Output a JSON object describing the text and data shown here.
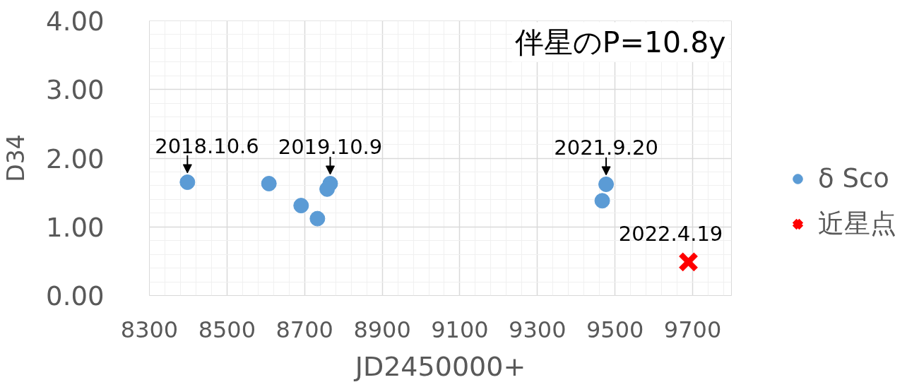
{
  "chart_data": {
    "type": "scatter",
    "title": "伴星のP=10.8y",
    "xlabel": "JD2450000+",
    "ylabel": "D34",
    "xlim": [
      8300,
      9800
    ],
    "xticks": [
      8300,
      8500,
      8700,
      8900,
      9100,
      9300,
      9500,
      9700
    ],
    "ylim": [
      0,
      4
    ],
    "yticks": [
      {
        "value": 0,
        "label": "0.00"
      },
      {
        "value": 1,
        "label": "1.00"
      },
      {
        "value": 2,
        "label": "2.00"
      },
      {
        "value": 3,
        "label": "3.00"
      },
      {
        "value": 4,
        "label": "4.00"
      }
    ],
    "grid": true,
    "legend": "right",
    "series": [
      {
        "name": "δ Sco",
        "color": "#5b9bd5",
        "marker": "circle",
        "x": [
          8398,
          8608,
          8691,
          8733,
          8766,
          8758,
          9477,
          9467
        ],
        "values": [
          1.65,
          1.63,
          1.31,
          1.12,
          1.63,
          1.55,
          1.62,
          1.38
        ]
      },
      {
        "name": "近星点",
        "color": "#ff0000",
        "marker": "cross",
        "x": [
          9689
        ],
        "values": [
          0.49
        ]
      }
    ],
    "annotations": [
      {
        "text": "2018.10.6",
        "x": 8398,
        "y": 1.65
      },
      {
        "text": "2019.10.9",
        "x": 8766,
        "y": 1.63
      },
      {
        "text": "2021.9.20",
        "x": 9477,
        "y": 1.62
      },
      {
        "text": "2022.4.19",
        "x": 9689,
        "y": 0.49
      }
    ]
  }
}
